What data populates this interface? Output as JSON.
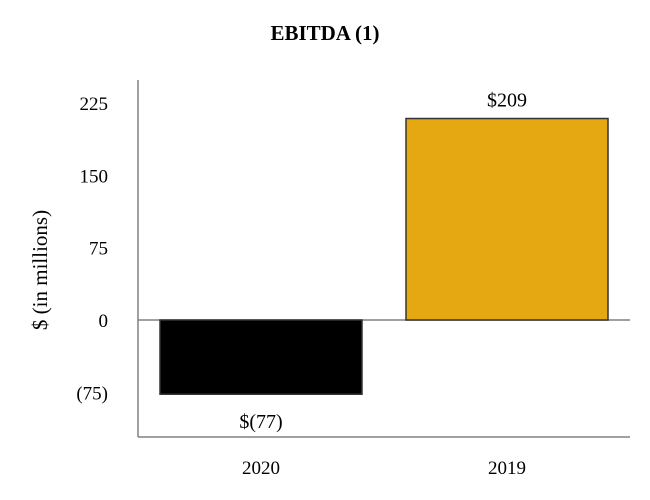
{
  "chart_data": {
    "type": "bar",
    "title": "EBITDA (1)",
    "xlabel": "",
    "ylabel": "$ (in millions)",
    "categories": [
      "2020",
      "2019"
    ],
    "values": [
      -77,
      209
    ],
    "data_labels": [
      "$(77)",
      "$209"
    ],
    "y_ticks": [
      225,
      150,
      75,
      0,
      -75
    ],
    "y_tick_labels": [
      "225",
      "150",
      "75",
      "0",
      "(75)"
    ],
    "ylim": [
      -120,
      240
    ],
    "grid": false,
    "legend": "none",
    "colors": {
      "2020": "#000000",
      "2019": "#E5A812"
    },
    "bar_outline": "#333333",
    "axis_color": "#808080"
  }
}
